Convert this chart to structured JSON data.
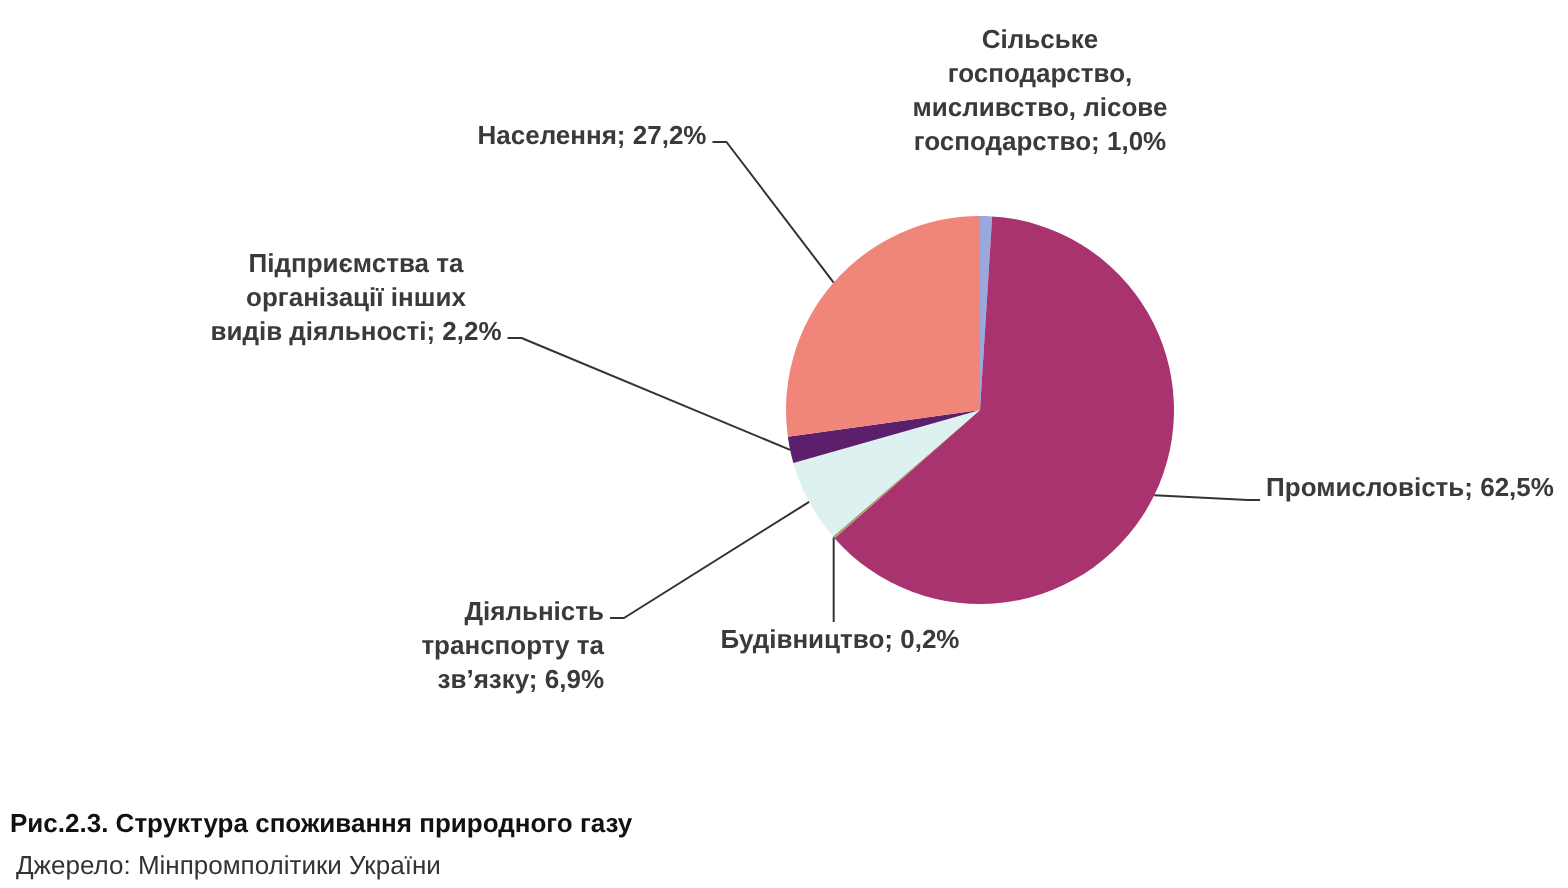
{
  "chart_data": {
    "type": "pie",
    "title": "Рис.2.3. Структура споживання природного газу",
    "categories": [
      "Сільське господарство, мисливство, лісове господарство",
      "Промисловість",
      "Будівництво",
      "Діяльність транспорту та зв’язку",
      "Підприємства та організації інших видів діяльності",
      "Населення"
    ],
    "values": [
      1.0,
      62.5,
      0.2,
      6.9,
      2.2,
      27.2
    ],
    "value_labels": [
      "1,0%",
      "62,5%",
      "0,2%",
      "6,9%",
      "2,2%",
      "27,2%"
    ],
    "colors": [
      "#9aa8e0",
      "#a8336f",
      "#a99d6c",
      "#ddf1f1",
      "#5b1f6b",
      "#f0857a"
    ],
    "annotations": [
      "Джерело: Мінпромполітики України"
    ]
  }
}
